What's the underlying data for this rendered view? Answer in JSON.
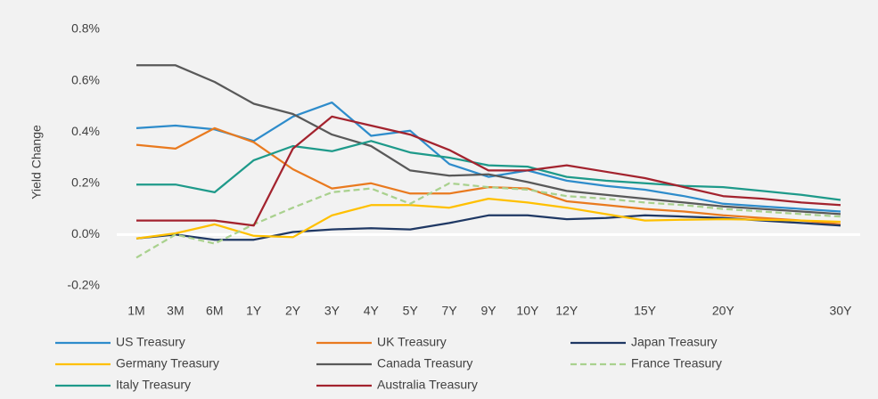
{
  "chart_data": {
    "type": "line",
    "y_label": "Yield Change",
    "categories": [
      "1M",
      "3M",
      "6M",
      "1Y",
      "2Y",
      "3Y",
      "4Y",
      "5Y",
      "7Y",
      "9Y",
      "10Y",
      "12Y",
      null,
      "15Y",
      null,
      "20Y",
      null,
      null,
      "30Y"
    ],
    "ylim": [
      -0.2,
      0.8
    ],
    "yticks": [
      {
        "value": -0.2,
        "label": "-0.2%"
      },
      {
        "value": 0,
        "label": "0.0%"
      },
      {
        "value": 0.2,
        "label": "0.2%"
      },
      {
        "value": 0.4,
        "label": "0.4%"
      },
      {
        "value": 0.6,
        "label": "0.6%"
      },
      {
        "value": 0.8,
        "label": "0.8%"
      }
    ],
    "grid": false,
    "legend": "bottom",
    "series": [
      {
        "name": "US Treasury",
        "color": "#2e8ccb",
        "line_style": "solid",
        "values": [
          0.415,
          0.425,
          0.41,
          0.365,
          0.46,
          0.515,
          0.385,
          0.405,
          0.275,
          0.225,
          0.25,
          0.21,
          0.19,
          0.175,
          0.15,
          0.12,
          0.11,
          0.1,
          0.09
        ]
      },
      {
        "name": "UK Treasury",
        "color": "#e97a1f",
        "line_style": "solid",
        "values": [
          0.35,
          0.335,
          0.415,
          0.36,
          0.255,
          0.18,
          0.2,
          0.16,
          0.16,
          0.185,
          0.18,
          0.13,
          0.115,
          0.1,
          0.09,
          0.075,
          0.065,
          0.055,
          0.04
        ]
      },
      {
        "name": "Japan Treasury",
        "color": "#1f3864",
        "line_style": "solid",
        "values": [
          -0.015,
          0.0,
          -0.02,
          -0.02,
          0.01,
          0.02,
          0.025,
          0.02,
          0.045,
          0.075,
          0.075,
          0.06,
          0.065,
          0.075,
          0.07,
          0.065,
          0.055,
          0.045,
          0.035
        ]
      },
      {
        "name": "Germany Treasury",
        "color": "#ffc000",
        "line_style": "solid",
        "values": [
          -0.015,
          0.005,
          0.04,
          -0.005,
          -0.01,
          0.075,
          0.115,
          0.115,
          0.105,
          0.14,
          0.125,
          0.105,
          0.08,
          0.055,
          0.058,
          0.06,
          0.058,
          0.055,
          0.05
        ]
      },
      {
        "name": "Canada Treasury",
        "color": "#595959",
        "line_style": "solid",
        "values": [
          0.66,
          0.66,
          0.595,
          0.51,
          0.47,
          0.39,
          0.345,
          0.25,
          0.23,
          0.235,
          0.205,
          0.17,
          0.155,
          0.14,
          0.125,
          0.11,
          0.1,
          0.09,
          0.08
        ]
      },
      {
        "name": "France Treasury",
        "color": "#a9d18e",
        "line_style": "dashed",
        "values": [
          -0.09,
          0.0,
          -0.035,
          0.04,
          0.105,
          0.165,
          0.18,
          0.12,
          0.2,
          0.185,
          0.175,
          0.15,
          0.14,
          0.125,
          0.115,
          0.1,
          0.09,
          0.08,
          0.07
        ]
      },
      {
        "name": "Italy Treasury",
        "color": "#1e9a8a",
        "line_style": "solid",
        "values": [
          0.195,
          0.195,
          0.165,
          0.29,
          0.345,
          0.325,
          0.365,
          0.32,
          0.3,
          0.27,
          0.265,
          0.225,
          0.21,
          0.2,
          0.19,
          0.185,
          0.17,
          0.155,
          0.135
        ]
      },
      {
        "name": "Australia Treasury",
        "color": "#a3232e",
        "line_style": "solid",
        "values": [
          0.055,
          0.055,
          0.055,
          0.035,
          0.335,
          0.46,
          0.425,
          0.39,
          0.33,
          0.25,
          0.25,
          0.27,
          0.245,
          0.22,
          0.185,
          0.15,
          0.14,
          0.125,
          0.115
        ]
      }
    ]
  }
}
